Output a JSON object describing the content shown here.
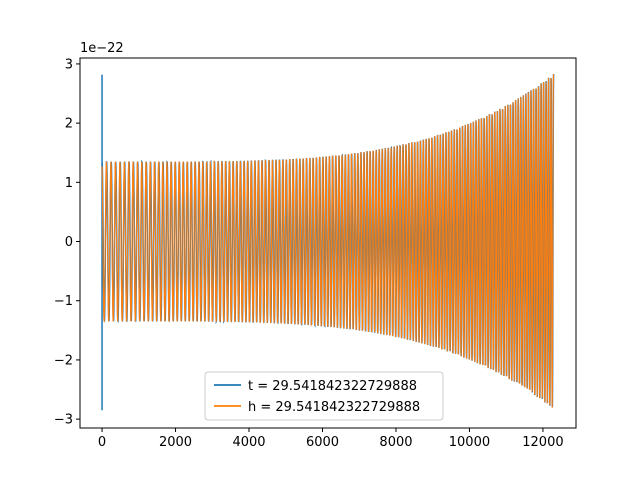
{
  "chart_data": {
    "type": "line",
    "title": "",
    "xlabel": "",
    "ylabel": "",
    "y_offset_label": "1e−22",
    "xlim": [
      -600,
      12900
    ],
    "ylim": [
      -3.15,
      3.1
    ],
    "x_ticks": [
      0,
      2000,
      4000,
      6000,
      8000,
      10000,
      12000
    ],
    "x_tick_labels": [
      "0",
      "2000",
      "4000",
      "6000",
      "8000",
      "10000",
      "12000"
    ],
    "y_ticks": [
      -3,
      -2,
      -1,
      0,
      1,
      2,
      3
    ],
    "y_tick_labels": [
      "−3",
      "−2",
      "−1",
      "0",
      "1",
      "2",
      "3"
    ],
    "grid": false,
    "legend_position": "lower-center",
    "series": [
      {
        "name": "t = 29.541842322729888",
        "color": "#1f77b4",
        "x_start": 0,
        "x_end": 12290,
        "amplitude_start": 1.35,
        "amplitude_end": 2.83,
        "initial_spike": [
          2.82,
          -2.85
        ],
        "cycles": 140
      },
      {
        "name": "h = 29.541842322729888",
        "color": "#ff7f0e",
        "x_start": 0,
        "x_end": 12290,
        "amplitude_start": 1.35,
        "amplitude_end": 2.83,
        "cycles": 140
      }
    ]
  }
}
